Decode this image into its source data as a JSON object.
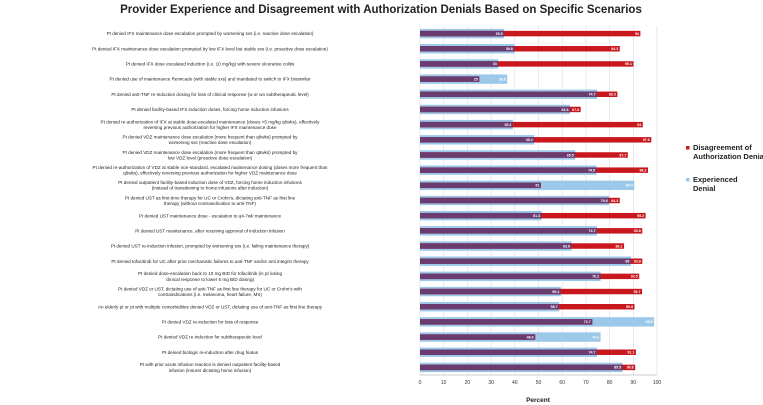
{
  "chart_data": {
    "type": "bar",
    "orientation": "horizontal",
    "title": "Provider Experience and Disagreement with Authorization Denials Based on Specific Scenarios",
    "xlabel": "Percent",
    "ylabel": "",
    "xlim": [
      0,
      100
    ],
    "xticks": [
      0,
      10,
      20,
      30,
      40,
      50,
      60,
      70,
      80,
      90,
      100
    ],
    "legend_position": "right",
    "categories": [
      "Pt denied IFX maintenance dose escalation prompted by worsening sxs (i.e. reactive dose escalation)",
      "Pt denied IFX maintenance dose escalation prompted by low IFX level but stable sxs (i.e. proactive dose escalation)",
      "Pt denied IFX dose escalated induction (i.e. 10 mg/kg) with severe ulcerative colitis",
      "Pt denied use of maintenance Remicade (with stable sxs) and mandated to switch to IFX biosimilar",
      "Pt denied anti-TNF re-induction dosing for loss of clinical response (w or wo subtherapeutic level)",
      "Pt denied facility-based IFX induction doses, forcing home induction infusions",
      "Pt denied re-authorization of IFX at stable dose-escalated maintenance (doses >5 mg/kg q8wks), effectively reversing previous authorization for higher IFX maintenance dose",
      "Pt denied VDZ maintenance dose escalation (more frequent than q8wks) prompted by worsening sxs (reactive dose escalation)",
      "Pt denied VDZ maintenance dose escalation (more frequent than q8wks) prompted by low VDZ level (proactive dose escalation)",
      "Pt denied re-authorization of VDZ at stable non-standard, escalated maintenance dosing (doses more frequent than q8wks), effectively reversing previous authorization for higher VDZ maintenance dose",
      "Pt denied outpatient facility-based induction dose of VDZ, forcing home induction infusions (instead of transitioning to home infusions after induction)",
      "Pt denied UST as first-time therapy for UC or Crohn's, dictating anti-TNF as first line therapy (without contraindication to anti-TNF)",
      "Pt denied UST maintenance dose - escalation to q4-7wk maintenance",
      "Pt denied UST maintenance, after receiving approval of induction infusion",
      "Pt denied UST re-induction infusion, prompted by worsening sxs (i.e. failing maintenance therapy)",
      "Pt denied tofacitinib for UC after prior mechanistic failures to anti-TNF and/or anti integrin therapy",
      "Pt denied dose-escalation back to 10 mg BID for tofacitinib (in pt losing clinical response to lower 5 mg BID dosing)",
      "Pt denied VDZ or UST, dictating use of anti-TNF as first line therapy for UC or Crohn's with contraindications (i.e. melanoma, heart failure, MS)",
      "An elderly pt or pt with multiple comorbidities denied VDZ or UST, dictating use of anti-TNF as first line therapy",
      "Pt denied VDZ re-induction for loss of response",
      "Pt denied VDZ re-induction for subtherapeutic level",
      "Pt denied biologic re-induction after drug hiatus",
      "Pt with prior acute infusion reaction is denied outpatient facility-based infusion (insurer dictating home infusion)"
    ],
    "series": [
      {
        "name": "Disagreement of Authorization Denial",
        "color": "#c8181e",
        "values": [
          93,
          84.3,
          90.1,
          25,
          83.3,
          67.8,
          94,
          97.6,
          87.7,
          96.2,
          51,
          84.3,
          95.2,
          93.8,
          86.1,
          93.8,
          92.5,
          93.7,
          90.5,
          72.7,
          48.6,
          91.1,
          90.8
        ],
        "labels": [
          "93",
          "84.3",
          "90.1",
          "25",
          "83.3",
          "67.8",
          "94",
          "97.6",
          "87.7",
          "96.2",
          "51",
          "84.3",
          "95.2",
          "93.8",
          "86.1",
          "93.8",
          "92.5",
          "93.7",
          "90.5",
          "72.7",
          "48.6",
          "91.1",
          "90.8"
        ]
      },
      {
        "name": "Experienced Denial",
        "color": "#9cc8ea",
        "values": [
          35.5,
          39.8,
          33,
          36.8,
          74.7,
          63.3,
          39.2,
          48.2,
          65.5,
          74.5,
          90.4,
          79.8,
          51.3,
          74.7,
          63.9,
          89,
          76.2,
          59.4,
          58.7,
          98.8,
          76.2,
          74.7,
          85.5
        ],
        "labels": [
          "35.5",
          "39.8",
          "33",
          "36.8",
          "74.7",
          "63.3",
          "39.2",
          "48.2",
          "65.5",
          "74.5",
          "90.4",
          "79.8",
          "51.3",
          "74.7",
          "63.9",
          "89",
          "76.2",
          "59.4",
          "58.7",
          "98.8",
          "76.2",
          "74.7",
          "85.5"
        ]
      }
    ]
  }
}
